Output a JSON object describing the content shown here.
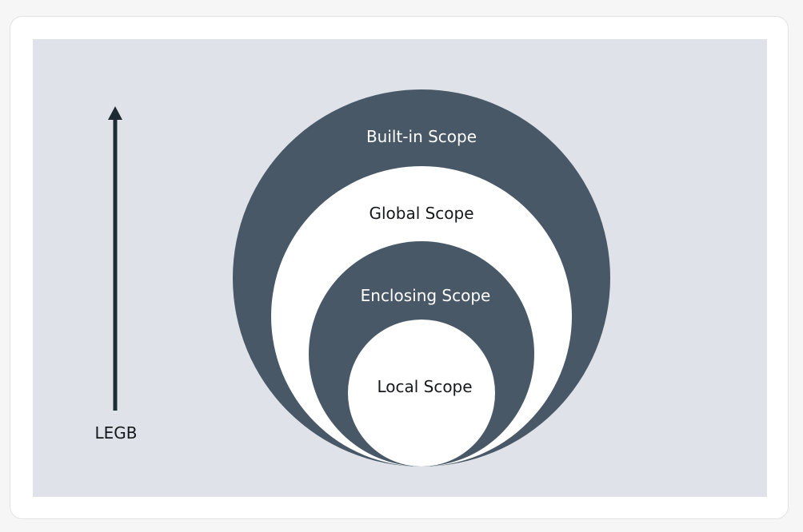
{
  "diagram": {
    "axis_label": "LEGB",
    "scopes": {
      "builtin": "Built-in Scope",
      "global": "Global Scope",
      "enclosing": "Enclosing Scope",
      "local": "Local Scope"
    },
    "colors": {
      "dark_ring": "#485867",
      "light_ring": "#ffffff",
      "background": "#dfe2e8",
      "arrow": "#1e2b33"
    }
  }
}
